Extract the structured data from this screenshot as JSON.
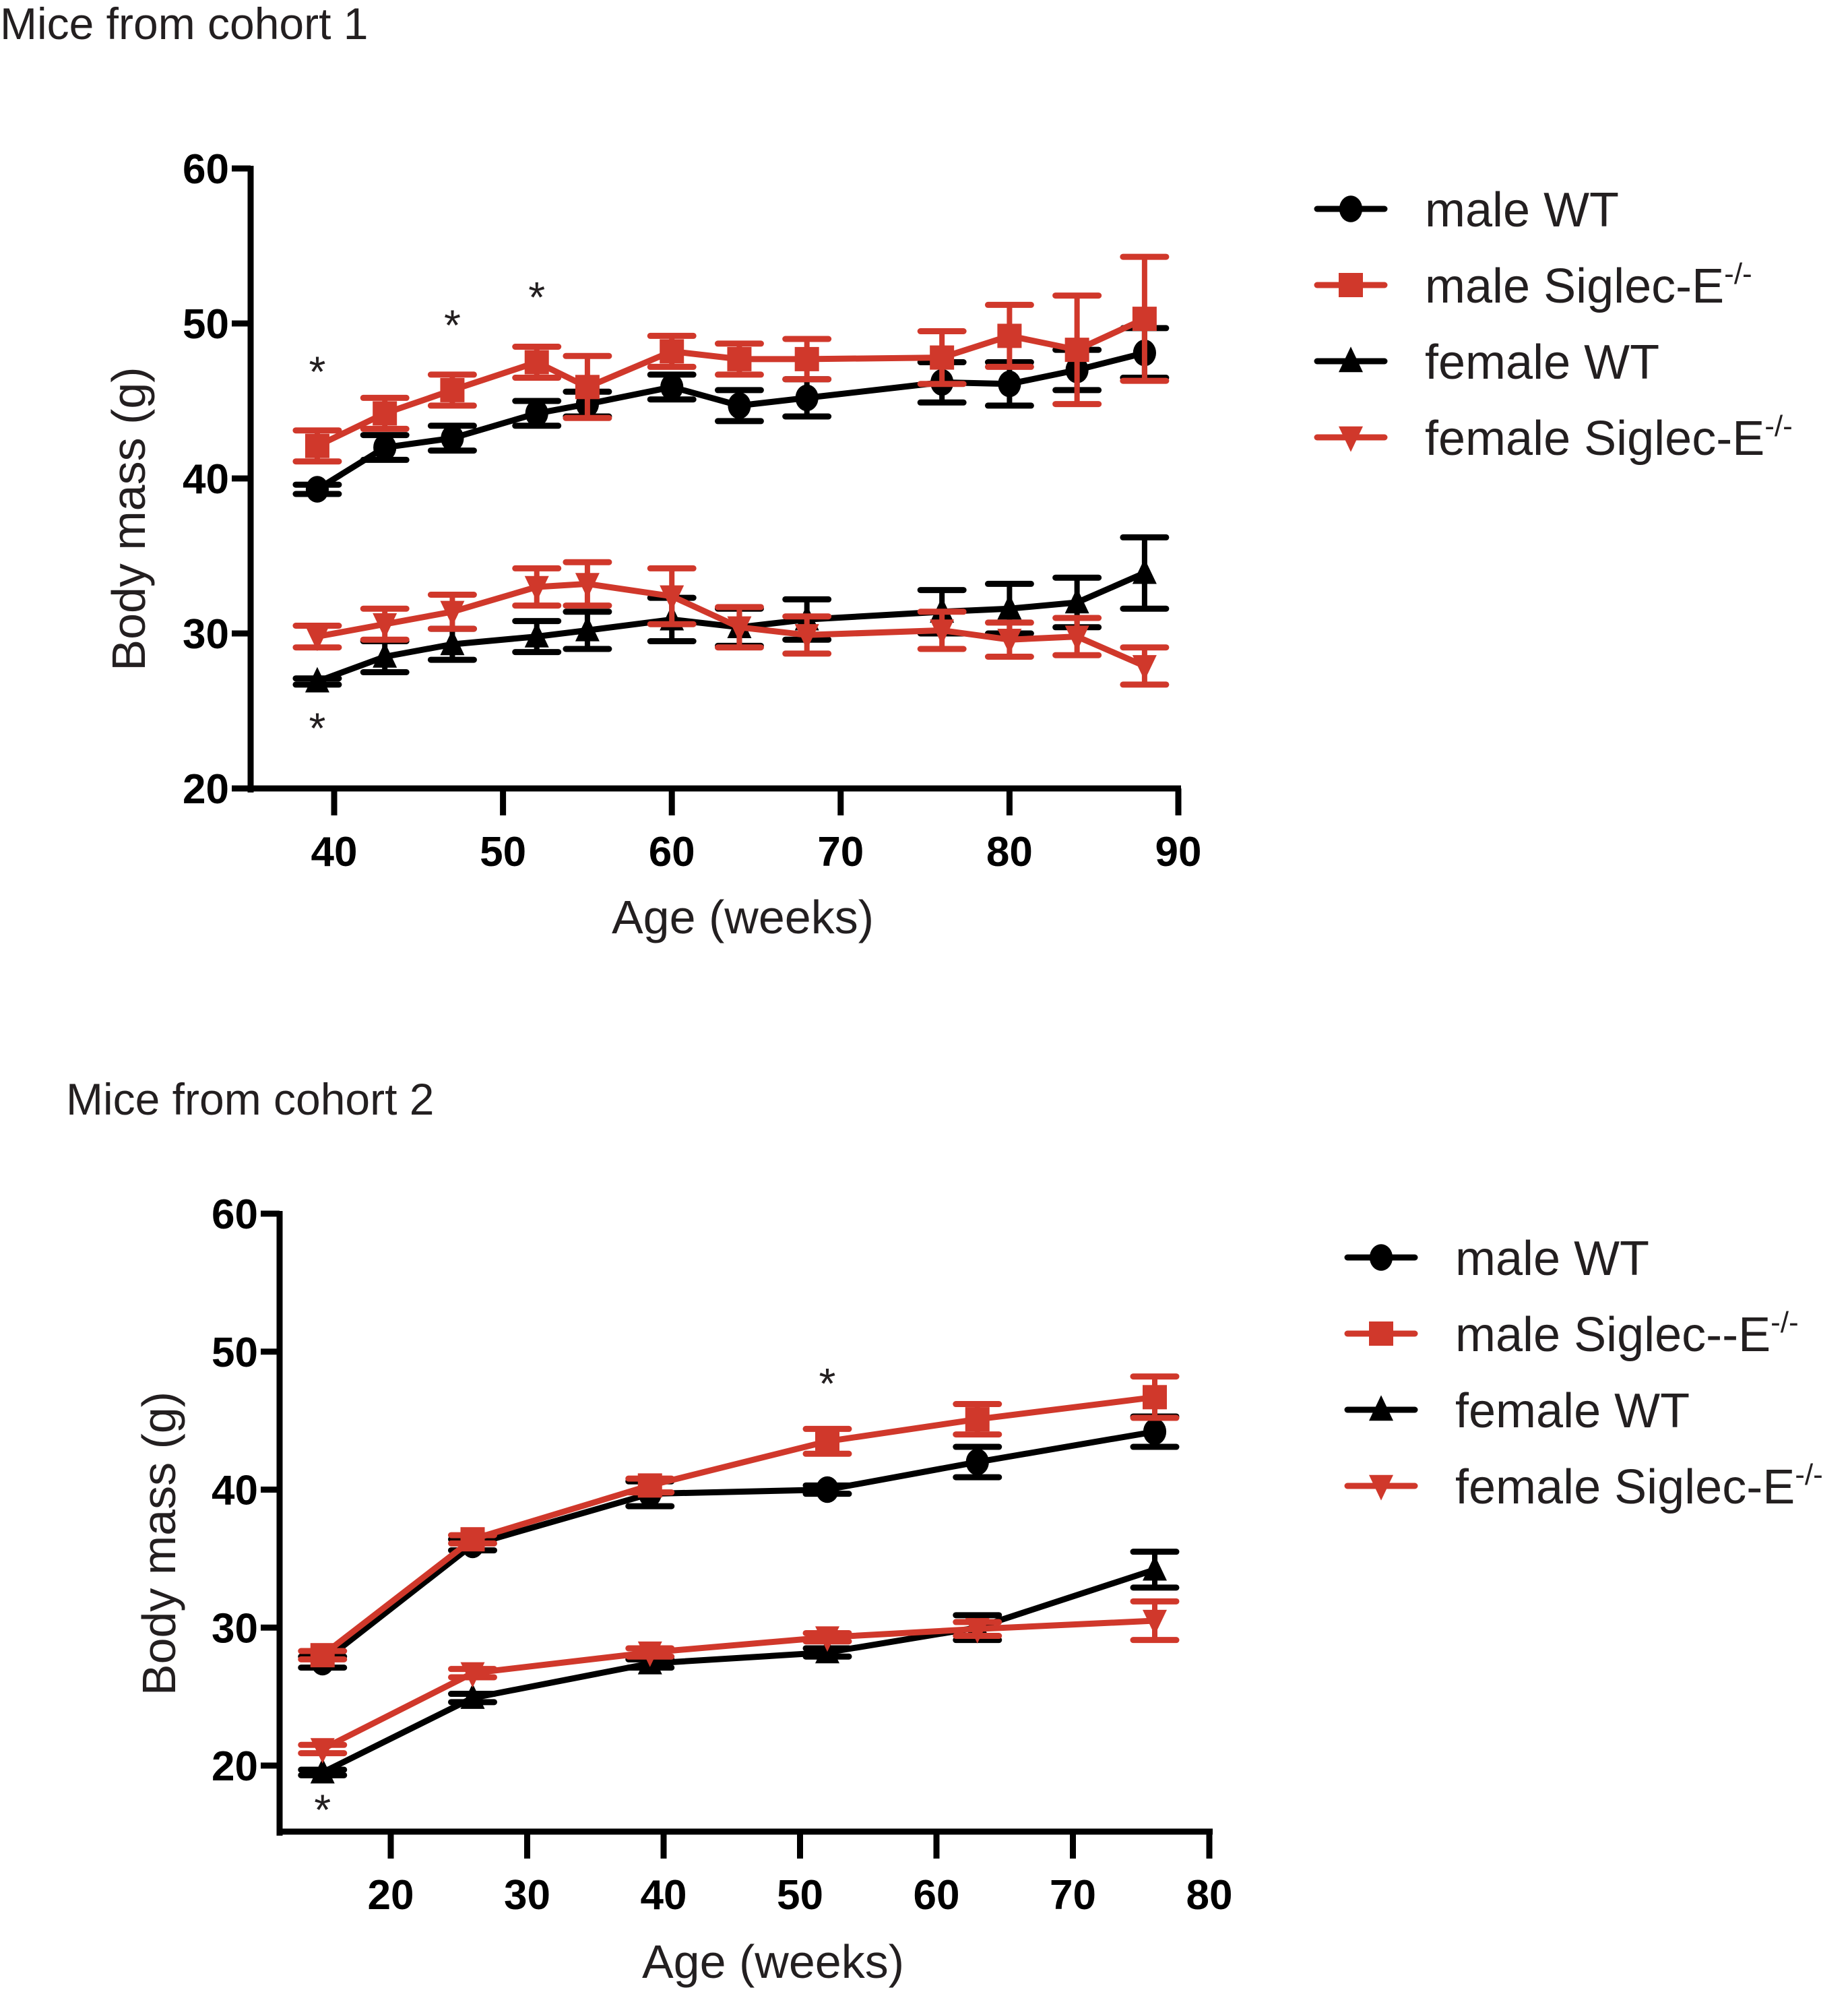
{
  "colors": {
    "wt": "#000000",
    "ko": "#d0382b"
  },
  "chart_data": [
    {
      "type": "line",
      "title": "Mice from cohort 1",
      "xlabel": "Age (weeks)",
      "ylabel": "Body mass (g)",
      "xlim": [
        35,
        90
      ],
      "ylim": [
        20,
        60
      ],
      "xticks": [
        40,
        50,
        60,
        70,
        80,
        90
      ],
      "yticks": [
        20,
        30,
        40,
        50,
        60
      ],
      "grid": false,
      "legend_position": "right-top",
      "x": [
        39,
        43,
        47,
        52,
        55,
        60,
        64,
        68,
        76,
        80,
        84,
        88
      ],
      "series": [
        {
          "name": "male WT",
          "marker": "circle",
          "color": "#000000",
          "values": [
            39.3,
            42.0,
            42.6,
            44.2,
            44.8,
            45.9,
            44.7,
            45.2,
            46.2,
            46.1,
            47.0,
            48.1
          ],
          "errors": [
            0.3,
            0.8,
            0.8,
            0.8,
            0.8,
            0.8,
            1.0,
            1.2,
            1.3,
            1.4,
            1.3,
            1.6
          ]
        },
        {
          "name": "male Siglec-E",
          "sup": "-/-",
          "marker": "square",
          "color": "#d0382b",
          "values": [
            42.1,
            44.2,
            45.7,
            47.5,
            45.9,
            48.2,
            47.7,
            47.7,
            47.8,
            49.2,
            48.3,
            50.3
          ],
          "errors": [
            1.0,
            1.0,
            1.0,
            1.0,
            2.0,
            1.0,
            1.0,
            1.3,
            1.7,
            2.0,
            3.5,
            4.0
          ]
        },
        {
          "name": "female WT",
          "marker": "triangle-up",
          "color": "#000000",
          "values": [
            26.9,
            28.5,
            29.3,
            29.8,
            30.2,
            30.9,
            30.4,
            30.9,
            31.4,
            31.6,
            32.0,
            33.9
          ],
          "errors": [
            0.2,
            1.0,
            1.0,
            1.0,
            1.2,
            1.4,
            1.2,
            1.3,
            1.4,
            1.6,
            1.6,
            2.3
          ]
        },
        {
          "name": "female Siglec-E",
          "sup": "-/-",
          "marker": "triangle-down",
          "color": "#d0382b",
          "values": [
            29.8,
            30.6,
            31.4,
            33.0,
            33.2,
            32.4,
            30.4,
            29.9,
            30.2,
            29.6,
            29.8,
            27.9
          ],
          "errors": [
            0.7,
            1.0,
            1.1,
            1.2,
            1.4,
            1.8,
            1.3,
            1.2,
            1.2,
            1.1,
            1.2,
            1.2
          ]
        }
      ],
      "annotations": [
        {
          "text": "*",
          "x": 39,
          "y": 46.9
        },
        {
          "text": "*",
          "x": 47,
          "y": 49.9
        },
        {
          "text": "*",
          "x": 52,
          "y": 51.7
        },
        {
          "text": "*",
          "x": 39,
          "y": 23.9
        }
      ]
    },
    {
      "type": "line",
      "title": "Mice from cohort 2",
      "xlabel": "Age (weeks)",
      "ylabel": "Body mass (g)",
      "xlim": [
        12,
        80
      ],
      "ylim": [
        15,
        60
      ],
      "xticks": [
        20,
        30,
        40,
        50,
        60,
        70,
        80
      ],
      "yticks": [
        20,
        30,
        40,
        50,
        60
      ],
      "grid": false,
      "legend_position": "right-middle",
      "x": [
        15,
        26,
        39,
        52,
        63,
        76
      ],
      "series": [
        {
          "name": "male WT",
          "marker": "circle",
          "color": "#000000",
          "values": [
            27.5,
            36.0,
            39.7,
            40.0,
            42.0,
            44.2
          ],
          "errors": [
            0.4,
            0.4,
            0.9,
            0.3,
            1.1,
            1.1
          ]
        },
        {
          "name": "male Siglec--E",
          "sup": "-/-",
          "marker": "square",
          "color": "#d0382b",
          "values": [
            28.0,
            36.4,
            40.3,
            43.5,
            45.1,
            46.7
          ],
          "errors": [
            0.3,
            0.3,
            0.5,
            0.9,
            1.1,
            1.5
          ]
        },
        {
          "name": "female WT",
          "marker": "triangle-up",
          "color": "#000000",
          "values": [
            19.5,
            24.9,
            27.4,
            28.2,
            30.0,
            34.2
          ],
          "errors": [
            0.2,
            0.3,
            0.3,
            0.3,
            0.9,
            1.3
          ]
        },
        {
          "name": "female Siglec-E",
          "sup": "-/-",
          "marker": "triangle-down",
          "color": "#d0382b",
          "values": [
            21.2,
            26.7,
            28.2,
            29.3,
            29.9,
            30.5
          ],
          "errors": [
            0.3,
            0.3,
            0.3,
            0.3,
            0.5,
            1.4
          ]
        }
      ],
      "annotations": [
        {
          "text": "*",
          "x": 52,
          "y": 47.7
        },
        {
          "text": "*",
          "x": 15,
          "y": 16.8
        }
      ]
    }
  ]
}
